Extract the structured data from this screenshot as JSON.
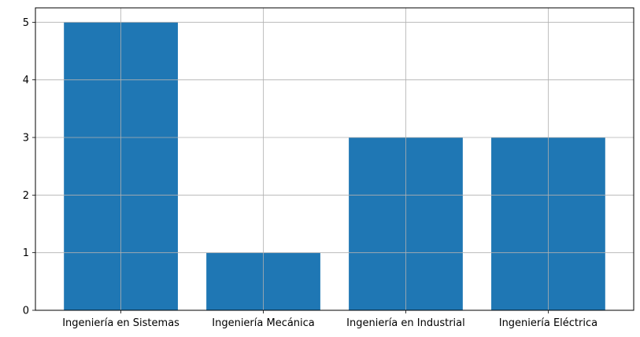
{
  "chart_data": {
    "type": "bar",
    "categories": [
      "Ingeniería en Sistemas",
      "Ingeniería Mecánica",
      "Ingeniería en Industrial",
      "Ingeniería Eléctrica"
    ],
    "values": [
      5,
      1,
      3,
      3
    ],
    "title": "",
    "xlabel": "",
    "ylabel": "",
    "ylim": [
      0,
      5.25
    ],
    "yticks": [
      0,
      1,
      2,
      3,
      4,
      5
    ],
    "grid": true,
    "legend": "none",
    "colors": {
      "bar": "#1f77b4",
      "grid": "#b0b0b0",
      "axis": "#000000"
    }
  }
}
